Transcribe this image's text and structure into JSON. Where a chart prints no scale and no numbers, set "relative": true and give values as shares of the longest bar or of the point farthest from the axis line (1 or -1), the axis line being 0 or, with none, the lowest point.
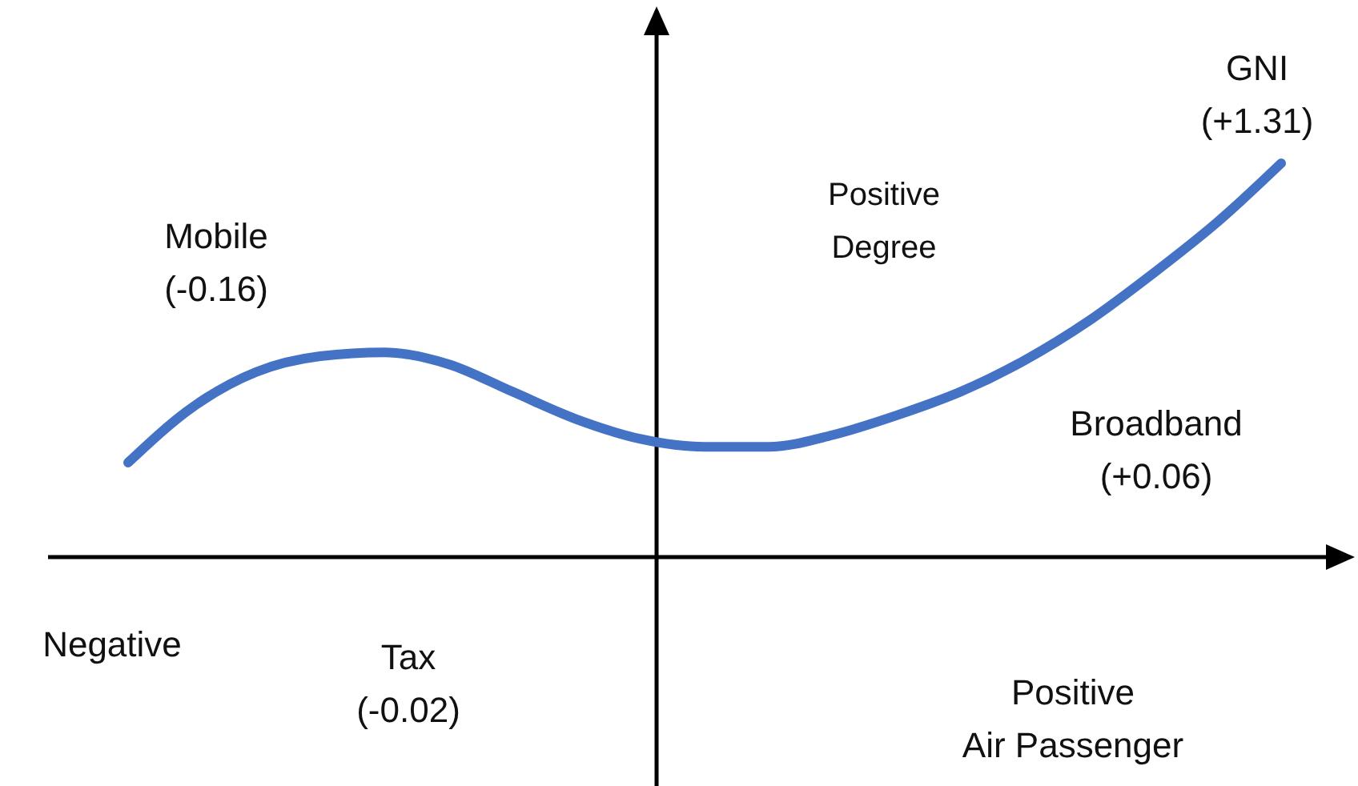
{
  "chart_data": {
    "type": "line",
    "relative": true,
    "categories": [
      null,
      null,
      null,
      null,
      null,
      null,
      null,
      null,
      null,
      null,
      null,
      null,
      null,
      null,
      null,
      null,
      null,
      null,
      null
    ],
    "series": [
      {
        "color": "#4472c4",
        "values": [
          0.24,
          0.38,
          0.47,
          0.51,
          0.52,
          0.49,
          0.42,
          0.35,
          0.3,
          0.28,
          0.28,
          0.31,
          0.36,
          0.42,
          0.5,
          0.6,
          0.72,
          0.85,
          1
        ]
      }
    ],
    "annotations": [
      "GNI\n(+1.31)",
      "Positive\nDegree",
      "Mobile\n(-0.16)",
      "Broadband\n(+0.06)",
      "Negative",
      "Tax\n(-0.02)",
      "Positive\nAir Passenger"
    ]
  }
}
